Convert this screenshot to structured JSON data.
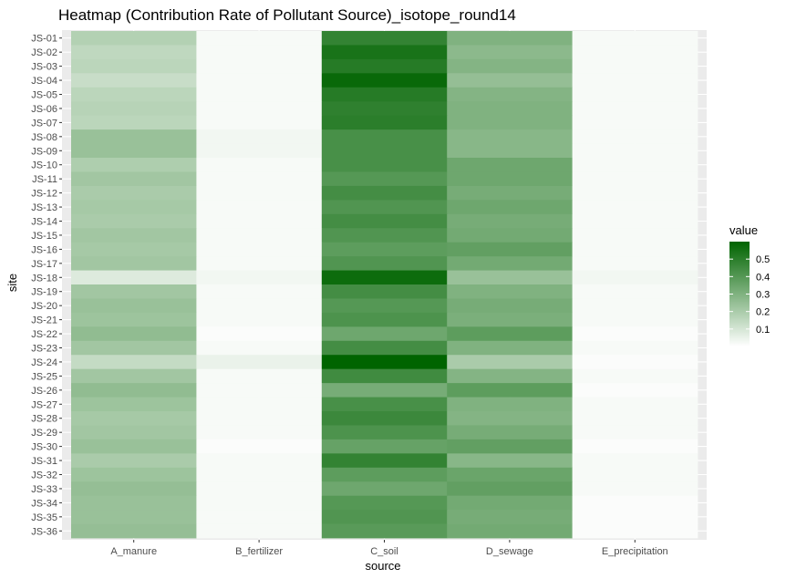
{
  "chart_data": {
    "type": "heatmap",
    "title": "Heatmap (Contribution Rate of Pollutant Source)_isotope_round14",
    "xlabel": "source",
    "ylabel": "site",
    "x_categories": [
      "A_manure",
      "B_fertilizer",
      "C_soil",
      "D_sewage",
      "E_precipitation"
    ],
    "y_categories": [
      "JS-01",
      "JS-02",
      "JS-03",
      "JS-04",
      "JS-05",
      "JS-06",
      "JS-07",
      "JS-08",
      "JS-09",
      "JS-10",
      "JS-11",
      "JS-12",
      "JS-13",
      "JS-14",
      "JS-15",
      "JS-16",
      "JS-17",
      "JS-18",
      "JS-19",
      "JS-20",
      "JS-21",
      "JS-22",
      "JS-23",
      "JS-24",
      "JS-25",
      "JS-26",
      "JS-27",
      "JS-28",
      "JS-29",
      "JS-30",
      "JS-31",
      "JS-32",
      "JS-33",
      "JS-34",
      "JS-35",
      "JS-36"
    ],
    "values": [
      [
        0.18,
        0.02,
        0.48,
        0.3,
        0.02
      ],
      [
        0.15,
        0.02,
        0.54,
        0.27,
        0.02
      ],
      [
        0.16,
        0.02,
        0.51,
        0.29,
        0.02
      ],
      [
        0.13,
        0.02,
        0.58,
        0.25,
        0.02
      ],
      [
        0.16,
        0.02,
        0.51,
        0.29,
        0.02
      ],
      [
        0.17,
        0.02,
        0.49,
        0.3,
        0.02
      ],
      [
        0.16,
        0.02,
        0.5,
        0.3,
        0.02
      ],
      [
        0.24,
        0.03,
        0.43,
        0.28,
        0.02
      ],
      [
        0.24,
        0.03,
        0.43,
        0.28,
        0.02
      ],
      [
        0.19,
        0.02,
        0.43,
        0.34,
        0.02
      ],
      [
        0.22,
        0.02,
        0.4,
        0.34,
        0.02
      ],
      [
        0.2,
        0.02,
        0.44,
        0.32,
        0.02
      ],
      [
        0.21,
        0.02,
        0.41,
        0.34,
        0.02
      ],
      [
        0.2,
        0.02,
        0.44,
        0.32,
        0.02
      ],
      [
        0.22,
        0.02,
        0.41,
        0.33,
        0.02
      ],
      [
        0.21,
        0.02,
        0.38,
        0.37,
        0.02
      ],
      [
        0.22,
        0.02,
        0.41,
        0.33,
        0.02
      ],
      [
        0.08,
        0.03,
        0.57,
        0.24,
        0.03
      ],
      [
        0.22,
        0.02,
        0.44,
        0.3,
        0.02
      ],
      [
        0.24,
        0.02,
        0.4,
        0.32,
        0.02
      ],
      [
        0.23,
        0.02,
        0.42,
        0.31,
        0.02
      ],
      [
        0.26,
        0.01,
        0.34,
        0.38,
        0.01
      ],
      [
        0.22,
        0.02,
        0.44,
        0.3,
        0.02
      ],
      [
        0.14,
        0.05,
        0.6,
        0.2,
        0.01
      ],
      [
        0.22,
        0.02,
        0.45,
        0.29,
        0.02
      ],
      [
        0.26,
        0.02,
        0.32,
        0.38,
        0.01
      ],
      [
        0.23,
        0.02,
        0.43,
        0.3,
        0.02
      ],
      [
        0.21,
        0.02,
        0.46,
        0.29,
        0.02
      ],
      [
        0.22,
        0.02,
        0.42,
        0.32,
        0.02
      ],
      [
        0.24,
        0.01,
        0.36,
        0.37,
        0.01
      ],
      [
        0.2,
        0.02,
        0.48,
        0.28,
        0.02
      ],
      [
        0.23,
        0.02,
        0.38,
        0.35,
        0.02
      ],
      [
        0.25,
        0.02,
        0.34,
        0.37,
        0.02
      ],
      [
        0.24,
        0.02,
        0.4,
        0.33,
        0.01
      ],
      [
        0.24,
        0.02,
        0.41,
        0.32,
        0.01
      ],
      [
        0.25,
        0.02,
        0.39,
        0.33,
        0.01
      ]
    ],
    "legend": {
      "title": "value",
      "ticks": [
        0.1,
        0.2,
        0.3,
        0.4,
        0.5
      ],
      "tick_labels": [
        "0.1",
        "0.2",
        "0.3",
        "0.4",
        "0.5"
      ],
      "min": 0.0,
      "max": 0.6,
      "low_color": "#ffffff",
      "high_color": "#006400"
    },
    "panel_background": "#ebebeb",
    "grid_color": "#ffffff"
  }
}
